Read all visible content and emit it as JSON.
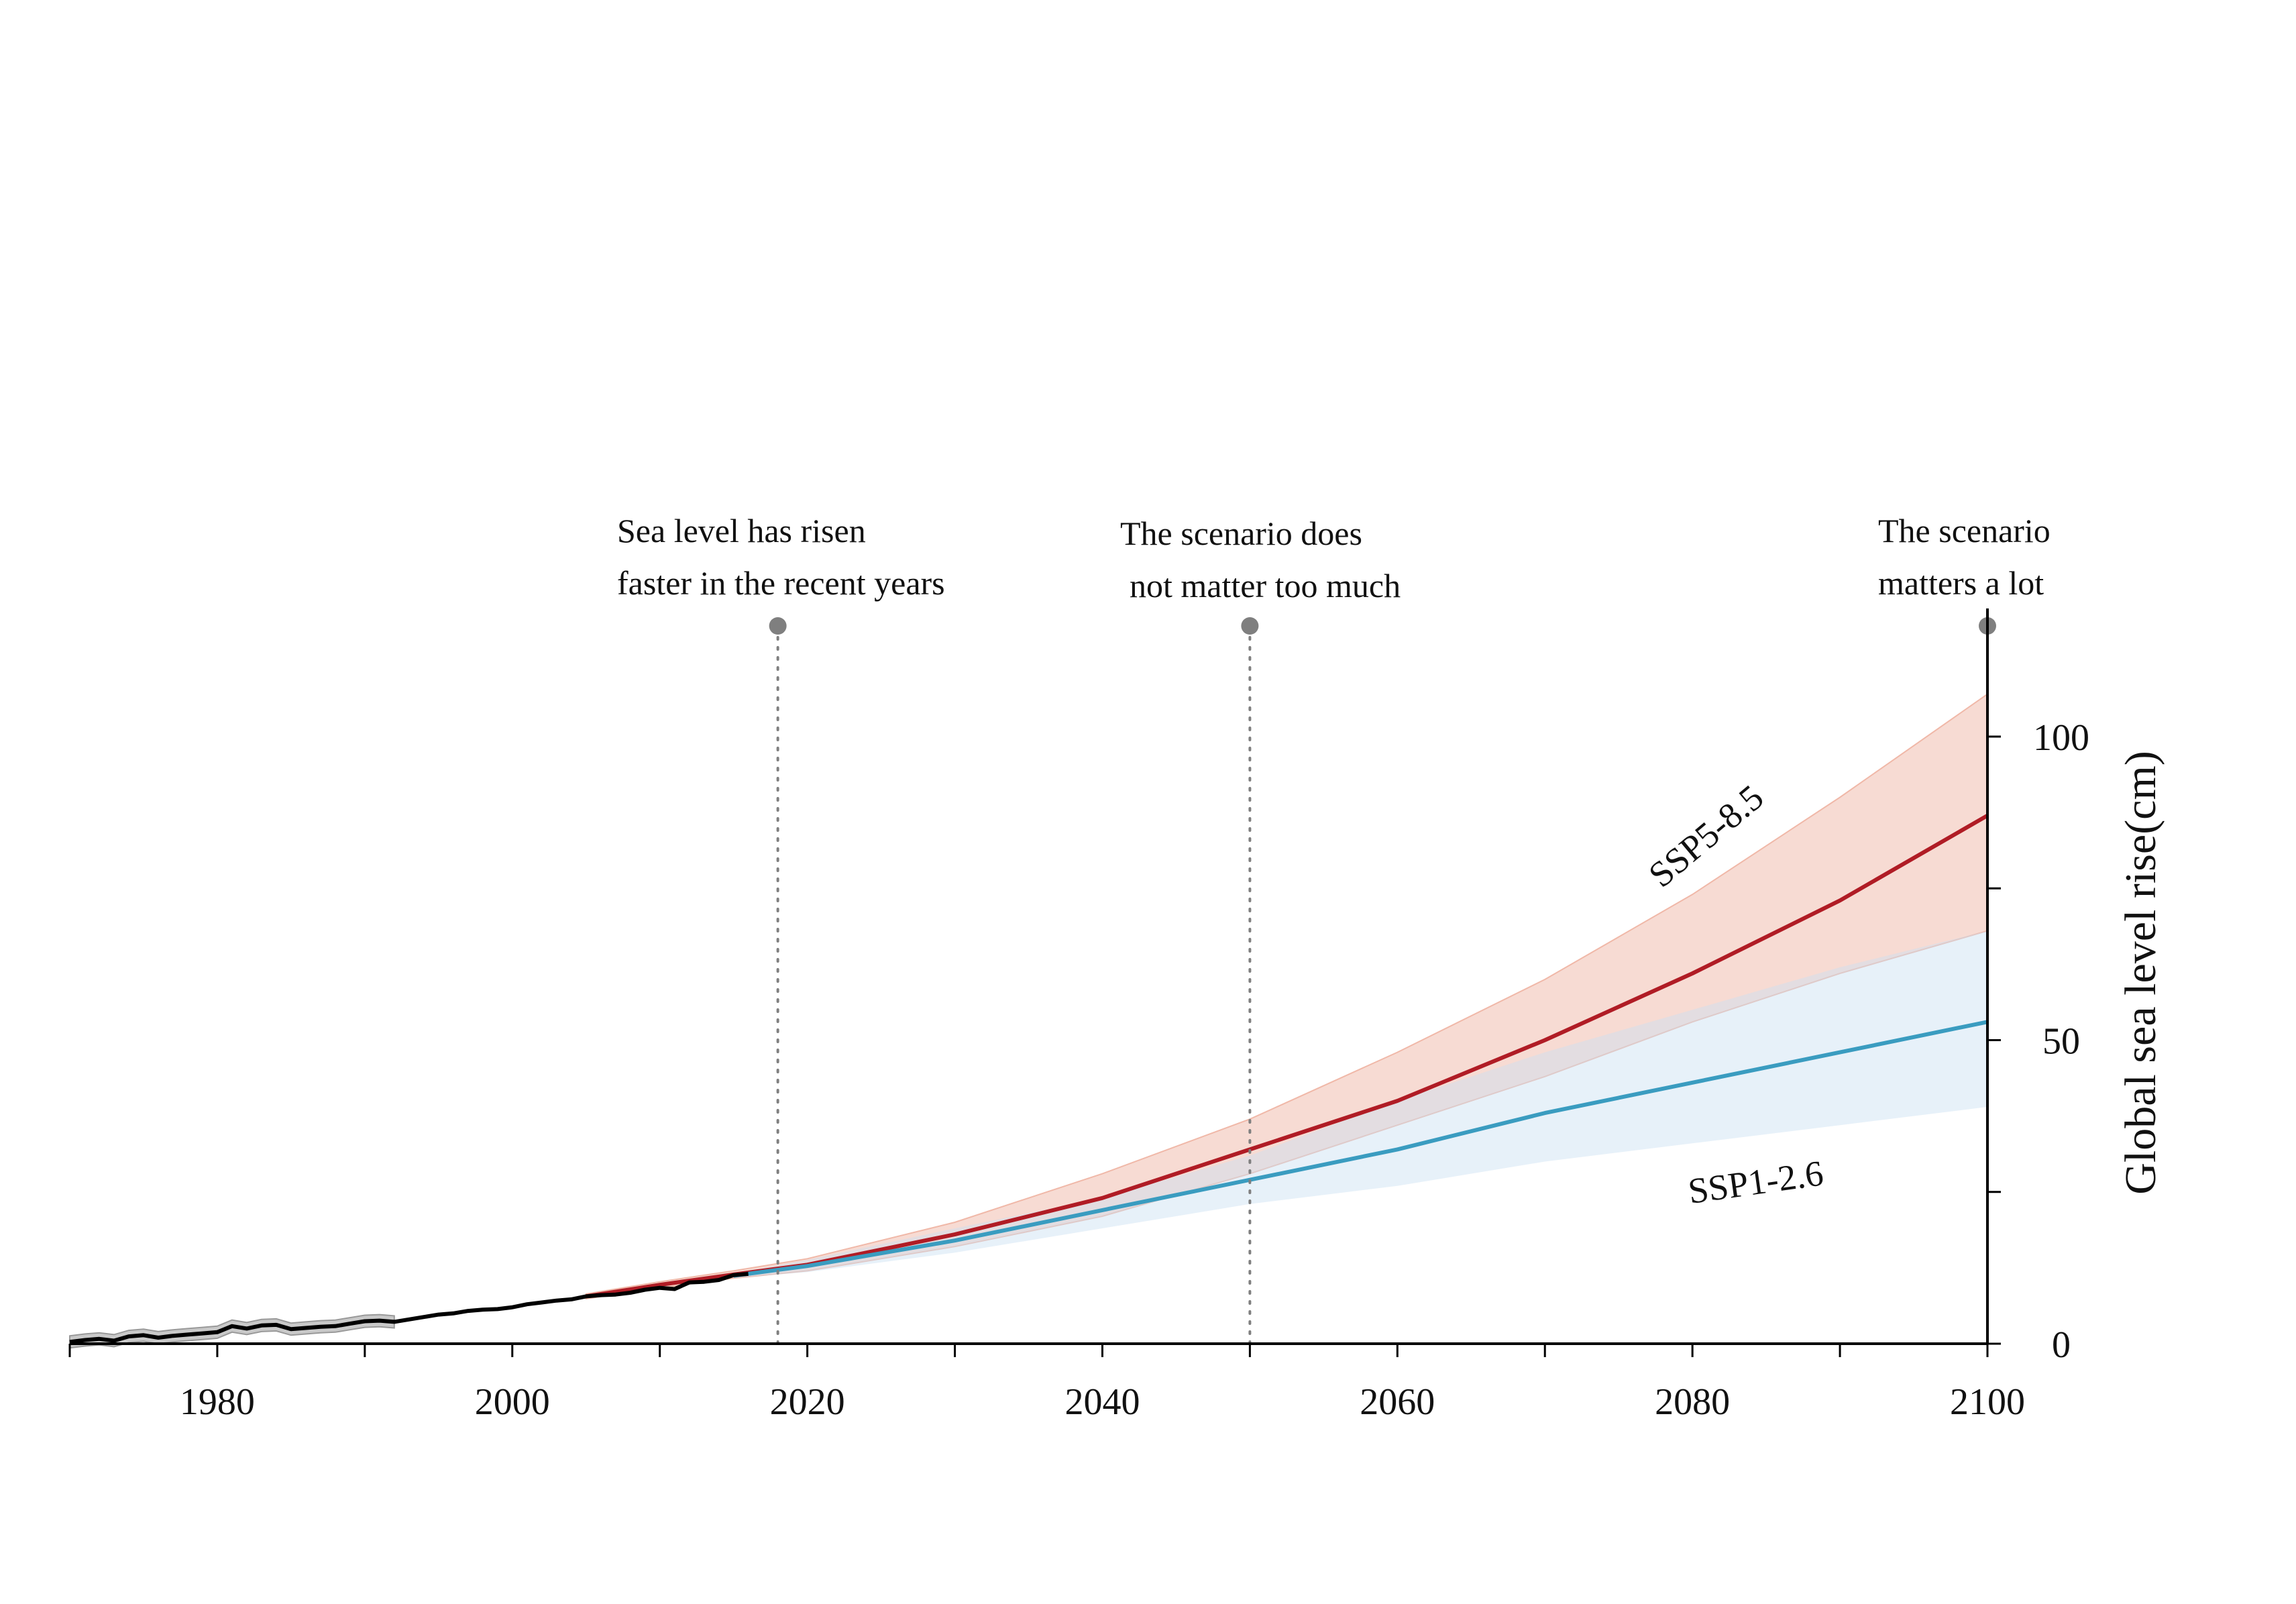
{
  "chart_data": {
    "type": "line",
    "title": "",
    "xlabel": "",
    "ylabel": "Global sea level rise(cm)",
    "xlim": [
      1970,
      2100
    ],
    "ylim": [
      0,
      120
    ],
    "x_ticks": [
      1980,
      2000,
      2020,
      2040,
      2060,
      2080,
      2100
    ],
    "x_minor_ticks": [
      1970,
      1990,
      2010,
      2030,
      2050,
      2070,
      2090
    ],
    "y_ticks": [
      0,
      50,
      100
    ],
    "y_minor_ticks": [
      25,
      75
    ],
    "grid": false,
    "colors": {
      "observed": "#000000",
      "observed_band": "#bbbbbb",
      "ssp585": "#b01c25",
      "ssp585_band": "#f0b8a8",
      "ssp126": "#3a9cc0",
      "ssp126_band": "#c9dff2",
      "marker": "#7f7f7f"
    },
    "observed": {
      "x": [
        1970,
        1971,
        1972,
        1973,
        1974,
        1975,
        1976,
        1977,
        1978,
        1979,
        1980,
        1981,
        1982,
        1983,
        1984,
        1985,
        1986,
        1987,
        1988,
        1989,
        1990,
        1991,
        1992,
        1993,
        1994,
        1995,
        1996,
        1997,
        1998,
        1999,
        2000,
        2001,
        2002,
        2003,
        2004,
        2005,
        2006,
        2007,
        2008,
        2009,
        2010,
        2011,
        2012,
        2013,
        2014,
        2015,
        2016
      ],
      "y": [
        0.3,
        0.6,
        0.8,
        0.5,
        1.2,
        1.4,
        1.0,
        1.3,
        1.5,
        1.7,
        1.9,
        2.9,
        2.5,
        3.0,
        3.1,
        2.4,
        2.6,
        2.8,
        2.9,
        3.3,
        3.7,
        3.8,
        3.6,
        4.0,
        4.4,
        4.8,
        5.0,
        5.4,
        5.6,
        5.7,
        6.0,
        6.5,
        6.8,
        7.1,
        7.3,
        7.8,
        8.0,
        8.1,
        8.4,
        8.9,
        9.2,
        9.0,
        10.1,
        10.2,
        10.5,
        11.3,
        11.5
      ],
      "band_lower": [
        -0.7,
        -0.4,
        -0.2,
        -0.5,
        0.2,
        0.4,
        0.0,
        0.3,
        0.5,
        0.7,
        0.9,
        1.9,
        1.5,
        2.0,
        2.1,
        1.4,
        1.6,
        1.8,
        1.9,
        2.3,
        2.7,
        2.8,
        2.6
      ],
      "band_upper": [
        1.3,
        1.6,
        1.8,
        1.5,
        2.2,
        2.4,
        2.0,
        2.3,
        2.5,
        2.7,
        2.9,
        3.9,
        3.5,
        4.0,
        4.1,
        3.4,
        3.6,
        3.8,
        3.9,
        4.3,
        4.7,
        4.8,
        4.6
      ]
    },
    "series": [
      {
        "name": "SSP5-8.5",
        "x": [
          2005,
          2010,
          2015,
          2020,
          2030,
          2040,
          2050,
          2060,
          2070,
          2080,
          2090,
          2100
        ],
        "y": [
          7.8,
          9.7,
          11.4,
          13,
          18,
          24,
          32,
          40,
          50,
          61,
          73,
          87
        ],
        "lower": [
          7.4,
          9.2,
          10.8,
          12,
          16,
          21,
          28,
          36,
          44,
          53,
          61,
          68
        ],
        "upper": [
          8.2,
          10.2,
          12.0,
          14,
          20,
          28,
          37,
          48,
          60,
          74,
          90,
          107
        ]
      },
      {
        "name": "SSP1-2.6",
        "x": [
          2015,
          2020,
          2030,
          2040,
          2050,
          2060,
          2070,
          2080,
          2090,
          2100
        ],
        "y": [
          11.2,
          12.8,
          17,
          22,
          27,
          32,
          38,
          43,
          48,
          53
        ],
        "lower": [
          10.8,
          11.8,
          15,
          19,
          23,
          26,
          30,
          33,
          36,
          39
        ],
        "upper": [
          11.6,
          13.8,
          19,
          24,
          31,
          40,
          48,
          55,
          62,
          68
        ]
      }
    ],
    "annotations": [
      {
        "x": 2018,
        "lines": [
          "Sea level has risen",
          "faster in the recent years"
        ]
      },
      {
        "x": 2050,
        "lines": [
          "The scenario does",
          "not matter too much"
        ]
      },
      {
        "x": 2100,
        "lines": [
          "The scenario",
          "matters a lot"
        ]
      }
    ]
  }
}
